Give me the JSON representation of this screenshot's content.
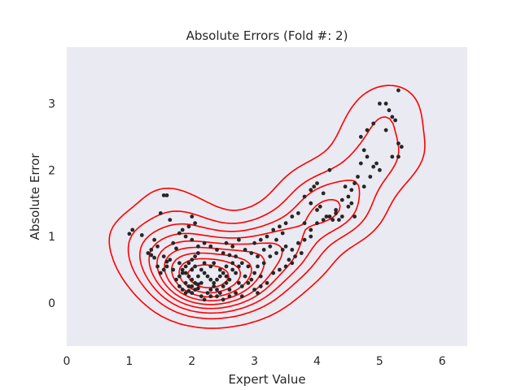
{
  "chart_data": {
    "type": "scatter",
    "title": "Absolute Errors (Fold #: 2)",
    "xlabel": "Expert Value",
    "ylabel": "Absolute Error",
    "xlim": [
      0,
      6.4
    ],
    "ylim": [
      -0.65,
      3.85
    ],
    "xticks": [
      "0",
      "1",
      "2",
      "3",
      "4",
      "5",
      "6"
    ],
    "yticks": [
      "0",
      "1",
      "2",
      "3"
    ],
    "xtick_values": [
      0,
      1,
      2,
      3,
      4,
      5,
      6
    ],
    "ytick_values": [
      0,
      1,
      2,
      3
    ],
    "grid": false,
    "background_color": "#eaeaf2",
    "point_color": "#262626",
    "contour_color": "#ff0000",
    "points": [
      [
        1.0,
        1.04
      ],
      [
        1.05,
        1.1
      ],
      [
        1.2,
        1.02
      ],
      [
        1.3,
        0.75
      ],
      [
        1.35,
        0.72
      ],
      [
        1.4,
        0.68
      ],
      [
        1.45,
        0.55
      ],
      [
        1.5,
        0.45
      ],
      [
        1.55,
        0.7
      ],
      [
        1.6,
        0.62
      ],
      [
        1.55,
        1.62
      ],
      [
        1.6,
        1.62
      ],
      [
        1.5,
        1.35
      ],
      [
        1.65,
        1.25
      ],
      [
        1.7,
        0.9
      ],
      [
        1.75,
        0.82
      ],
      [
        1.8,
        0.6
      ],
      [
        1.85,
        0.5
      ],
      [
        1.9,
        0.3
      ],
      [
        1.95,
        0.25
      ],
      [
        1.8,
        0.4
      ],
      [
        1.85,
        0.2
      ],
      [
        1.9,
        0.15
      ],
      [
        1.95,
        0.4
      ],
      [
        2.0,
        0.25
      ],
      [
        2.0,
        0.35
      ],
      [
        2.05,
        0.3
      ],
      [
        2.1,
        0.28
      ],
      [
        2.0,
        0.15
      ],
      [
        2.05,
        0.2
      ],
      [
        1.95,
        0.18
      ],
      [
        2.1,
        0.22
      ],
      [
        2.15,
        0.3
      ],
      [
        1.9,
        0.45
      ],
      [
        2.0,
        0.5
      ],
      [
        2.05,
        0.55
      ],
      [
        2.1,
        0.4
      ],
      [
        2.15,
        0.1
      ],
      [
        2.2,
        0.05
      ],
      [
        2.25,
        0.15
      ],
      [
        2.3,
        0.2
      ],
      [
        2.35,
        0.3
      ],
      [
        2.4,
        0.35
      ],
      [
        2.45,
        0.4
      ],
      [
        2.5,
        0.45
      ],
      [
        2.55,
        0.4
      ],
      [
        2.6,
        0.35
      ],
      [
        2.65,
        0.5
      ],
      [
        2.7,
        0.45
      ],
      [
        2.75,
        0.3
      ],
      [
        2.2,
        0.9
      ],
      [
        2.3,
        0.85
      ],
      [
        2.4,
        0.8
      ],
      [
        2.5,
        0.75
      ],
      [
        2.6,
        0.72
      ],
      [
        2.7,
        0.7
      ],
      [
        2.8,
        0.6
      ],
      [
        2.9,
        0.55
      ],
      [
        3.0,
        0.45
      ],
      [
        3.1,
        0.4
      ],
      [
        2.0,
        1.3
      ],
      [
        2.05,
        1.2
      ],
      [
        1.9,
        1.0
      ],
      [
        2.0,
        0.95
      ],
      [
        2.1,
        0.85
      ],
      [
        2.2,
        0.6
      ],
      [
        2.3,
        0.1
      ],
      [
        2.4,
        0.1
      ],
      [
        2.5,
        0.05
      ],
      [
        2.6,
        0.2
      ],
      [
        2.8,
        0.25
      ],
      [
        2.9,
        0.3
      ],
      [
        3.0,
        0.2
      ],
      [
        3.05,
        0.15
      ],
      [
        3.1,
        0.25
      ],
      [
        3.2,
        0.3
      ],
      [
        3.3,
        0.45
      ],
      [
        3.4,
        0.5
      ],
      [
        3.5,
        0.55
      ],
      [
        3.6,
        0.6
      ],
      [
        3.0,
        0.9
      ],
      [
        3.1,
        0.95
      ],
      [
        3.2,
        1.0
      ],
      [
        3.3,
        1.1
      ],
      [
        3.4,
        1.15
      ],
      [
        3.5,
        1.2
      ],
      [
        3.6,
        1.3
      ],
      [
        3.7,
        1.35
      ],
      [
        3.8,
        1.2
      ],
      [
        3.9,
        1.1
      ],
      [
        3.5,
        0.85
      ],
      [
        3.6,
        0.8
      ],
      [
        3.7,
        0.9
      ],
      [
        3.8,
        0.95
      ],
      [
        3.9,
        1.0
      ],
      [
        4.0,
        1.2
      ],
      [
        4.1,
        1.25
      ],
      [
        4.2,
        1.3
      ],
      [
        4.3,
        1.35
      ],
      [
        4.35,
        1.25
      ],
      [
        3.8,
        1.6
      ],
      [
        3.9,
        1.7
      ],
      [
        3.95,
        1.75
      ],
      [
        4.0,
        1.8
      ],
      [
        4.1,
        1.65
      ],
      [
        4.2,
        2.0
      ],
      [
        4.3,
        1.4
      ],
      [
        4.4,
        1.55
      ],
      [
        4.5,
        1.6
      ],
      [
        4.55,
        1.7
      ],
      [
        4.6,
        1.8
      ],
      [
        4.7,
        2.1
      ],
      [
        4.75,
        2.3
      ],
      [
        4.8,
        2.2
      ],
      [
        4.85,
        1.9
      ],
      [
        4.9,
        2.05
      ],
      [
        4.95,
        2.1
      ],
      [
        5.0,
        2.0
      ],
      [
        4.6,
        1.3
      ],
      [
        4.55,
        1.5
      ],
      [
        4.7,
        2.5
      ],
      [
        4.8,
        2.6
      ],
      [
        4.9,
        2.7
      ],
      [
        5.0,
        3.0
      ],
      [
        5.1,
        3.0
      ],
      [
        5.15,
        2.9
      ],
      [
        5.2,
        2.8
      ],
      [
        5.25,
        2.75
      ],
      [
        5.3,
        3.2
      ],
      [
        5.3,
        2.4
      ],
      [
        5.35,
        2.35
      ],
      [
        5.3,
        2.2
      ],
      [
        5.2,
        2.2
      ],
      [
        5.1,
        2.6
      ],
      [
        2.3,
        0.55
      ],
      [
        2.35,
        0.6
      ],
      [
        2.45,
        0.5
      ],
      [
        2.55,
        0.55
      ],
      [
        2.65,
        0.6
      ],
      [
        2.75,
        0.55
      ],
      [
        2.85,
        0.4
      ],
      [
        2.95,
        0.35
      ],
      [
        3.05,
        0.55
      ],
      [
        3.15,
        0.6
      ],
      [
        3.25,
        0.7
      ],
      [
        3.35,
        0.75
      ],
      [
        3.45,
        0.8
      ],
      [
        3.55,
        0.65
      ],
      [
        3.65,
        0.7
      ],
      [
        3.75,
        0.75
      ],
      [
        1.75,
        0.35
      ],
      [
        1.8,
        0.25
      ],
      [
        1.85,
        0.45
      ],
      [
        1.9,
        0.55
      ],
      [
        1.95,
        0.6
      ],
      [
        2.0,
        0.65
      ],
      [
        2.05,
        0.7
      ],
      [
        2.1,
        0.75
      ],
      [
        2.15,
        0.5
      ],
      [
        2.2,
        0.45
      ],
      [
        2.25,
        0.4
      ],
      [
        2.3,
        0.35
      ],
      [
        2.35,
        0.25
      ],
      [
        2.4,
        0.2
      ],
      [
        2.45,
        0.15
      ],
      [
        2.5,
        0.25
      ],
      [
        2.55,
        0.3
      ],
      [
        2.6,
        0.1
      ],
      [
        2.7,
        0.15
      ],
      [
        2.8,
        0.1
      ],
      [
        1.65,
        0.65
      ],
      [
        1.7,
        0.5
      ],
      [
        1.6,
        0.55
      ],
      [
        1.55,
        0.5
      ],
      [
        1.45,
        0.85
      ],
      [
        1.4,
        0.95
      ],
      [
        1.35,
        0.8
      ],
      [
        1.8,
        1.05
      ],
      [
        1.85,
        1.1
      ],
      [
        1.95,
        1.15
      ],
      [
        2.55,
        0.9
      ],
      [
        2.65,
        0.85
      ],
      [
        2.75,
        0.95
      ],
      [
        2.85,
        0.8
      ],
      [
        2.95,
        0.75
      ],
      [
        3.05,
        0.7
      ],
      [
        3.15,
        0.8
      ],
      [
        3.25,
        0.85
      ],
      [
        3.35,
        0.95
      ],
      [
        3.45,
        1.05
      ],
      [
        3.9,
        1.5
      ],
      [
        4.0,
        1.4
      ],
      [
        4.05,
        1.45
      ],
      [
        4.15,
        1.3
      ],
      [
        4.25,
        1.25
      ],
      [
        4.4,
        1.3
      ],
      [
        4.5,
        1.45
      ],
      [
        4.45,
        1.75
      ],
      [
        4.65,
        1.9
      ],
      [
        4.75,
        1.75
      ]
    ]
  }
}
